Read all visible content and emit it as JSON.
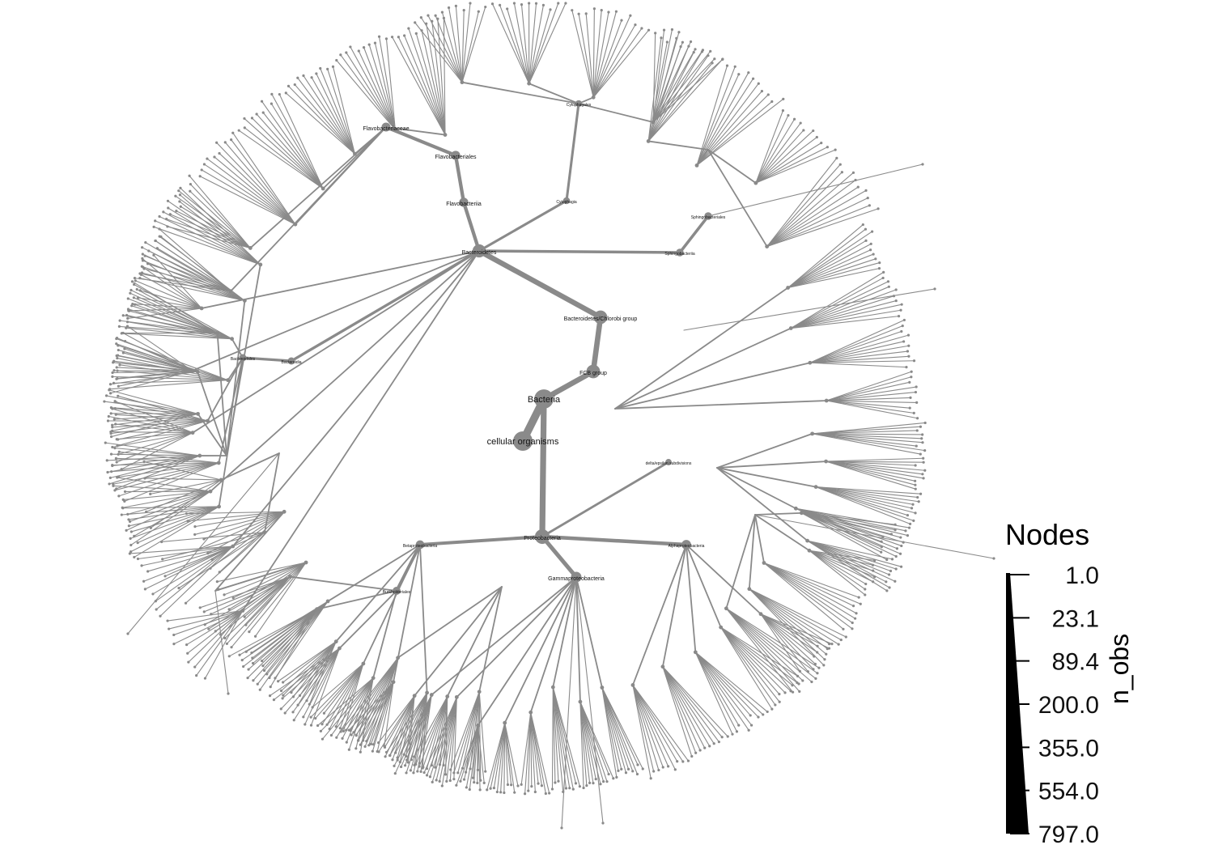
{
  "diagram": {
    "nodes": [
      {
        "id": "cellular_organisms",
        "label": "cellular organisms",
        "parent": null,
        "n_obs": 797.0,
        "major": true
      },
      {
        "id": "bacteria",
        "label": "Bacteria",
        "parent": "cellular_organisms",
        "n_obs": 780.0,
        "major": true
      },
      {
        "id": "fcb",
        "label": "FCB group",
        "parent": "bacteria",
        "n_obs": 330.0,
        "major": true
      },
      {
        "id": "bcg",
        "label": "Bacteroidetes/Chlorobi group",
        "parent": "fcb",
        "n_obs": 320.0,
        "major": true
      },
      {
        "id": "bacteroidetes",
        "label": "Bacteroidetes",
        "parent": "bcg",
        "n_obs": 300.0,
        "major": true
      },
      {
        "id": "flavobacteriia",
        "label": "Flavobacteriia",
        "parent": "bacteroidetes",
        "n_obs": 110.0,
        "major": true
      },
      {
        "id": "flavobacteriales",
        "label": "Flavobacteriales",
        "parent": "flavobacteriia",
        "n_obs": 108.0,
        "major": true
      },
      {
        "id": "flavobacteriaceae",
        "label": "Flavobacteriaceae",
        "parent": "flavobacteriales",
        "n_obs": 100.0,
        "major": true
      },
      {
        "id": "cytophagia",
        "label": "Cytophagia",
        "parent": "bacteroidetes",
        "n_obs": 40.0,
        "major": false
      },
      {
        "id": "cytophagales",
        "label": "Cytophagales",
        "parent": "cytophagia",
        "n_obs": 38.0,
        "major": false
      },
      {
        "id": "sphingobacteriia",
        "label": "Sphingobacteriia",
        "parent": "bacteroidetes",
        "n_obs": 60.0,
        "major": false
      },
      {
        "id": "sphingobacteriales",
        "label": "Sphingobacteriales",
        "parent": "sphingobacteriia",
        "n_obs": 58.0,
        "major": false
      },
      {
        "id": "bacteroidia",
        "label": "Bacteroidia",
        "parent": "bacteroidetes",
        "n_obs": 50.0,
        "major": false
      },
      {
        "id": "bacteroidales",
        "label": "Bacteroidales",
        "parent": "bacteroidia",
        "n_obs": 48.0,
        "major": false
      },
      {
        "id": "proteobacteria",
        "label": "Proteobacteria",
        "parent": "bacteria",
        "n_obs": 400.0,
        "major": true
      },
      {
        "id": "betaproteobacteria",
        "label": "Betaproteobacteria",
        "parent": "proteobacteria",
        "n_obs": 90.0,
        "major": false
      },
      {
        "id": "burkholderiales",
        "label": "Burkholderiales",
        "parent": "betaproteobacteria",
        "n_obs": 70.0,
        "major": false
      },
      {
        "id": "gammaproteobacteria",
        "label": "Gammaproteobacteria",
        "parent": "proteobacteria",
        "n_obs": 160.0,
        "major": true
      },
      {
        "id": "alphaproteobacteria",
        "label": "Alphaproteobacteria",
        "parent": "proteobacteria",
        "n_obs": 120.0,
        "major": false
      },
      {
        "id": "deltaproteobacteria",
        "label": "delta/epsilon subdivisions",
        "parent": "proteobacteria",
        "n_obs": 30.0,
        "major": false
      }
    ]
  },
  "legend": {
    "title": "Nodes",
    "axis_label": "n_obs",
    "ticks": [
      "1.0",
      "23.1",
      "89.4",
      "200.0",
      "355.0",
      "554.0",
      "797.0"
    ]
  },
  "colors": {
    "edge": "#8a8a8a",
    "node": "#8a8a8a",
    "legend_fill": "#000000"
  }
}
